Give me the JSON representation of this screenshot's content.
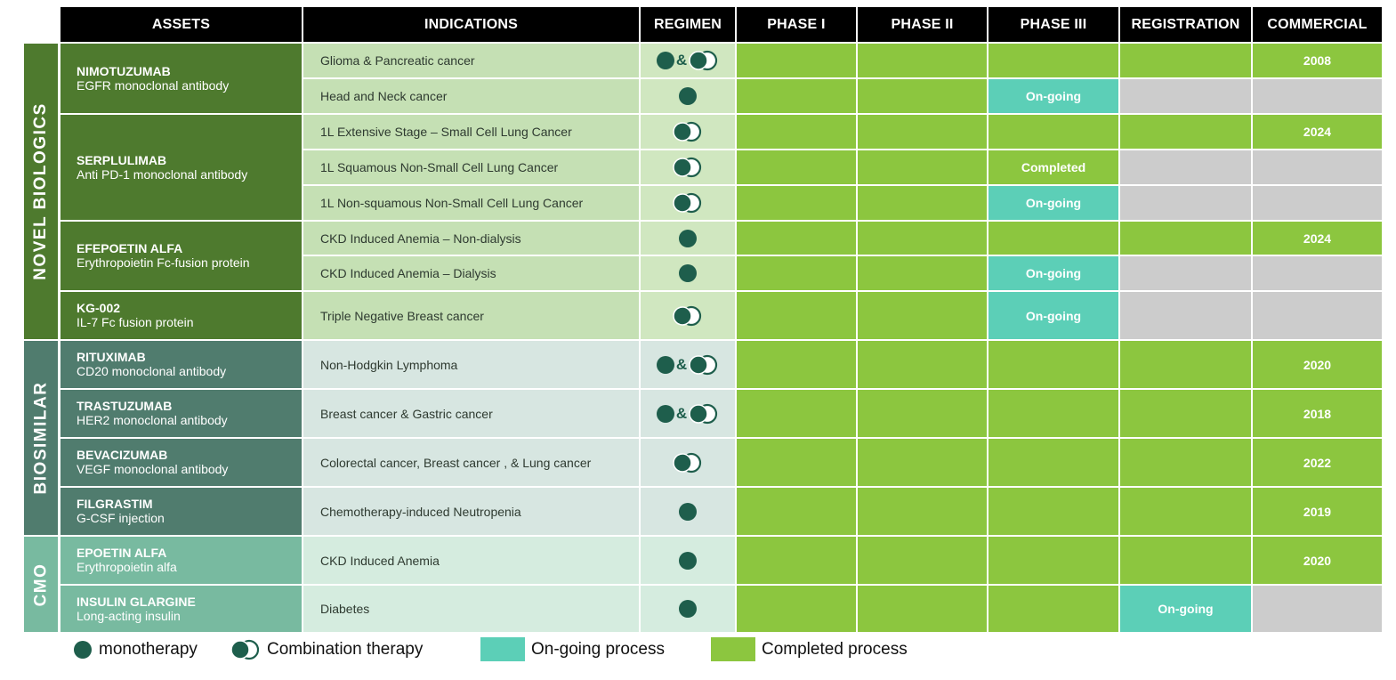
{
  "headers": [
    "ASSETS",
    "INDICATIONS",
    "REGIMEN",
    "PHASE I",
    "PHASE II",
    "PHASE III",
    "REGISTRATION",
    "COMMERCIAL"
  ],
  "colors": {
    "header_bg": "#000000",
    "completed": "#8cc63f",
    "ongoing": "#5ccfb7",
    "not_reached": "#cccccc",
    "mono_dot": "#1e5e4c"
  },
  "sections": [
    {
      "label": "NOVEL BIOLOGICS",
      "bg": "#4e7a2e",
      "asset_bg": "#4e7a2e",
      "ind_bg": "#c5e0b4",
      "reg_bg": "#d0e7c0"
    },
    {
      "label": "BIOSIMILAR",
      "bg": "#507c6e",
      "asset_bg": "#507c6e",
      "ind_bg": "#d7e6e1",
      "reg_bg": "#d7e6e1"
    },
    {
      "label": "CMO",
      "bg": "#78baa0",
      "asset_bg": "#78baa0",
      "ind_bg": "#d5ecdf",
      "reg_bg": "#d5ecdf"
    }
  ],
  "assets": [
    {
      "name": "NIMOTUZUMAB",
      "desc": "EGFR monoclonal antibody"
    },
    {
      "name": "SERPLULIMAB",
      "desc": "Anti PD-1 monoclonal antibody"
    },
    {
      "name": "EFEPOETIN ALFA",
      "desc": "Erythropoietin Fc-fusion protein"
    },
    {
      "name": "KG-002",
      "desc": "IL-7 Fc fusion protein"
    },
    {
      "name": "RITUXIMAB",
      "desc": "CD20 monoclonal antibody"
    },
    {
      "name": "TRASTUZUMAB",
      "desc": "HER2 monoclonal antibody"
    },
    {
      "name": "BEVACIZUMAB",
      "desc": "VEGF monoclonal antibody"
    },
    {
      "name": "FILGRASTIM",
      "desc": "G-CSF injection"
    },
    {
      "name": "EPOETIN ALFA",
      "desc": "Erythropoietin alfa"
    },
    {
      "name": "INSULIN GLARGINE",
      "desc": "Long-acting insulin"
    }
  ],
  "rows": [
    {
      "indication": "Glioma & Pancreatic cancer",
      "regimen": "both",
      "phases": [
        "completed",
        "completed",
        "completed",
        "completed",
        "completed"
      ],
      "label_col": 4,
      "label": "2008"
    },
    {
      "indication": "Head and Neck cancer",
      "regimen": "mono",
      "phases": [
        "completed",
        "completed",
        "ongoing",
        "not_reached",
        "not_reached"
      ],
      "label_col": 2,
      "label": "On-going"
    },
    {
      "indication": "1L Extensive Stage – Small Cell Lung Cancer",
      "regimen": "combo",
      "phases": [
        "completed",
        "completed",
        "completed",
        "completed",
        "completed"
      ],
      "label_col": 4,
      "label": "2024"
    },
    {
      "indication": "1L Squamous Non-Small Cell Lung Cancer",
      "regimen": "combo",
      "phases": [
        "completed",
        "completed",
        "completed",
        "not_reached",
        "not_reached"
      ],
      "label_col": 2,
      "label": "Completed"
    },
    {
      "indication": "1L Non-squamous Non-Small Cell Lung Cancer",
      "regimen": "combo",
      "phases": [
        "completed",
        "completed",
        "ongoing",
        "not_reached",
        "not_reached"
      ],
      "label_col": 2,
      "label": "On-going"
    },
    {
      "indication": "CKD Induced Anemia – Non-dialysis",
      "regimen": "mono",
      "phases": [
        "completed",
        "completed",
        "completed",
        "completed",
        "completed"
      ],
      "label_col": 4,
      "label": "2024"
    },
    {
      "indication": "CKD Induced Anemia – Dialysis",
      "regimen": "mono",
      "phases": [
        "completed",
        "completed",
        "ongoing",
        "not_reached",
        "not_reached"
      ],
      "label_col": 2,
      "label": "On-going"
    },
    {
      "indication": "Triple Negative Breast cancer",
      "regimen": "combo",
      "phases": [
        "completed",
        "completed",
        "ongoing",
        "not_reached",
        "not_reached"
      ],
      "label_col": 2,
      "label": "On-going"
    },
    {
      "indication": "Non-Hodgkin Lymphoma",
      "regimen": "both",
      "phases": [
        "completed",
        "completed",
        "completed",
        "completed",
        "completed"
      ],
      "label_col": 4,
      "label": "2020"
    },
    {
      "indication": "Breast cancer & Gastric cancer",
      "regimen": "both",
      "phases": [
        "completed",
        "completed",
        "completed",
        "completed",
        "completed"
      ],
      "label_col": 4,
      "label": "2018"
    },
    {
      "indication": "Colorectal cancer, Breast cancer , & Lung cancer",
      "regimen": "combo",
      "phases": [
        "completed",
        "completed",
        "completed",
        "completed",
        "completed"
      ],
      "label_col": 4,
      "label": "2022"
    },
    {
      "indication": "Chemotherapy-induced Neutropenia",
      "regimen": "mono",
      "phases": [
        "completed",
        "completed",
        "completed",
        "completed",
        "completed"
      ],
      "label_col": 4,
      "label": "2019"
    },
    {
      "indication": "CKD Induced Anemia",
      "regimen": "mono",
      "phases": [
        "completed",
        "completed",
        "completed",
        "completed",
        "completed"
      ],
      "label_col": 4,
      "label": "2020"
    },
    {
      "indication": "Diabetes",
      "regimen": "mono",
      "phases": [
        "completed",
        "completed",
        "completed",
        "ongoing",
        "not_reached"
      ],
      "label_col": 3,
      "label": "On-going"
    }
  ],
  "legend": {
    "mono": "monotherapy",
    "combo": "Combination therapy",
    "ongoing": "On-going process",
    "completed": "Completed process"
  }
}
